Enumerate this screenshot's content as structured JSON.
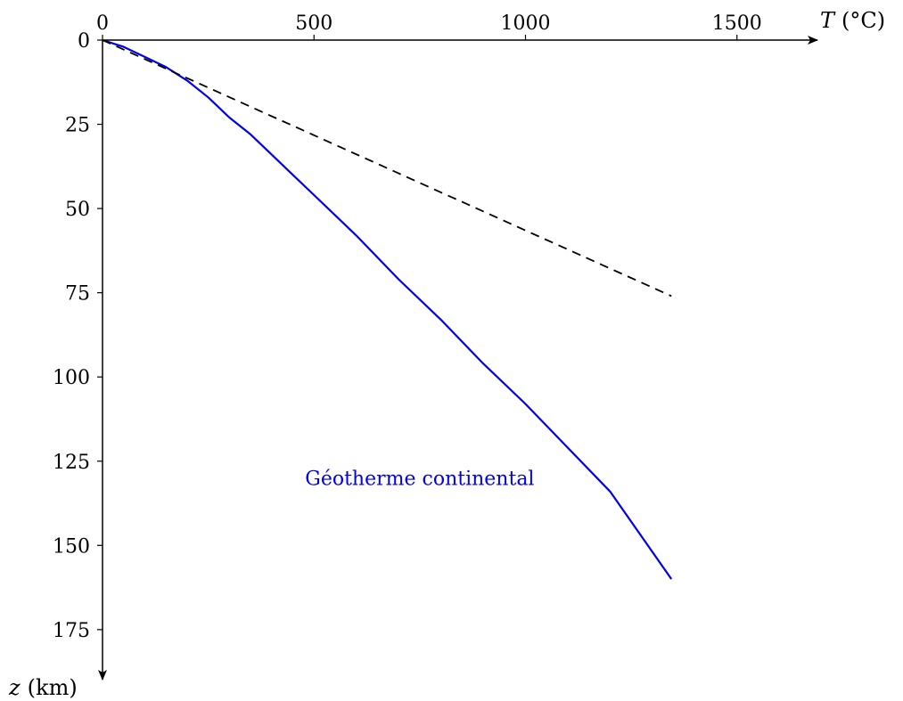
{
  "chart_data": {
    "type": "line",
    "x_axis": {
      "variable": "T",
      "unit": "(°C)",
      "range": [
        0,
        1690
      ],
      "ticks": [
        0,
        500,
        1000,
        1500
      ],
      "tick_labels": [
        "0",
        "500",
        "1000",
        "1500"
      ],
      "position": "top",
      "direction": "right"
    },
    "y_axis": {
      "variable": "z",
      "unit": "(km)",
      "range": [
        0,
        188
      ],
      "ticks": [
        0,
        25,
        50,
        75,
        100,
        125,
        150,
        175
      ],
      "tick_labels": [
        "0",
        "25",
        "50",
        "75",
        "100",
        "125",
        "150",
        "175"
      ],
      "direction": "down"
    },
    "grid": false,
    "legend": "none",
    "series": [
      {
        "name": "Géotherme continental",
        "color": "#0000ee",
        "style": "solid",
        "points": [
          [
            0,
            0
          ],
          [
            25,
            1
          ],
          [
            50,
            2
          ],
          [
            100,
            5
          ],
          [
            150,
            8
          ],
          [
            200,
            12
          ],
          [
            250,
            17
          ],
          [
            300,
            23
          ],
          [
            350,
            28
          ],
          [
            400,
            34
          ],
          [
            450,
            40
          ],
          [
            500,
            46
          ],
          [
            600,
            58
          ],
          [
            700,
            71
          ],
          [
            800,
            83
          ],
          [
            900,
            96
          ],
          [
            1000,
            108
          ],
          [
            1100,
            121
          ],
          [
            1200,
            134
          ],
          [
            1345,
            160
          ]
        ]
      },
      {
        "color": "#000000",
        "style": "dashed",
        "points": [
          [
            0,
            0
          ],
          [
            1345,
            76
          ]
        ]
      }
    ],
    "annotations": [
      {
        "text": "Géotherme continental",
        "x": 750,
        "y": 130,
        "color": "#0000ee"
      }
    ]
  }
}
